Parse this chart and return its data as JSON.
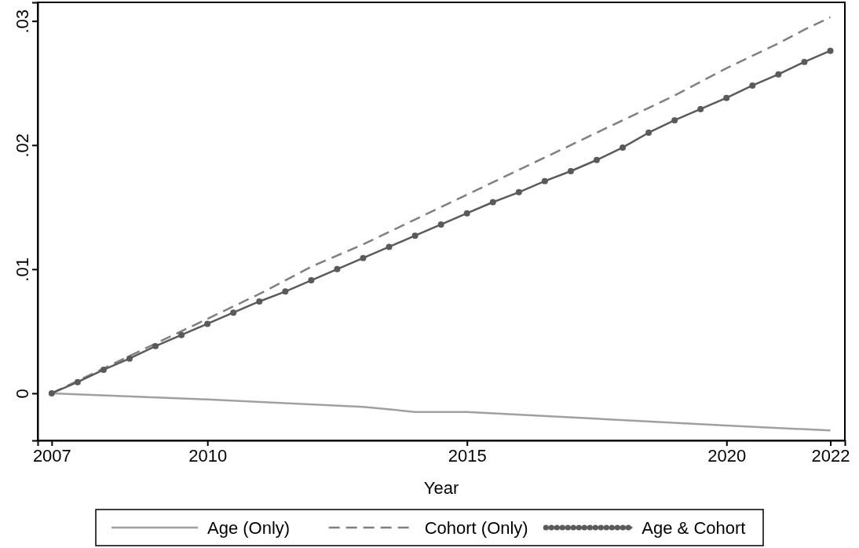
{
  "chart_data": {
    "type": "line",
    "xlabel": "Year",
    "xlim": [
      2006.73,
      2022.28
    ],
    "xticks": [
      2007,
      2010,
      2015,
      2020,
      2022
    ],
    "ylim": [
      -0.0038,
      0.0315
    ],
    "yticks": [
      {
        "value": 0,
        "label": "0"
      },
      {
        "value": 0.01,
        "label": ".01"
      },
      {
        "value": 0.02,
        "label": ".02"
      },
      {
        "value": 0.03,
        "label": ".03"
      }
    ],
    "grid": false,
    "legend": "bottom",
    "series": [
      {
        "name": "Age (Only)",
        "color": "#a0a0a0",
        "line_style": "solid",
        "marker": "none",
        "x": [
          2007,
          2010,
          2013,
          2014,
          2015,
          2020,
          2022
        ],
        "values": [
          0,
          -0.0005,
          -0.0011,
          -0.0015,
          -0.0015,
          -0.0026,
          -0.003
        ]
      },
      {
        "name": "Cohort (Only)",
        "color": "#808080",
        "line_style": "dashed",
        "marker": "none",
        "x": [
          2007,
          2008,
          2009,
          2010,
          2011,
          2012,
          2013,
          2014,
          2015,
          2016,
          2017,
          2018,
          2019,
          2020,
          2021,
          2021.55,
          2022
        ],
        "values": [
          0,
          0.002,
          0.004,
          0.006,
          0.008,
          0.0102,
          0.012,
          0.014,
          0.016,
          0.018,
          0.02,
          0.022,
          0.024,
          0.0262,
          0.0282,
          0.0294,
          0.0303
        ]
      },
      {
        "name": "Age & Cohort",
        "color": "#5a5a5a",
        "line_style": "solid",
        "marker": "circle",
        "x": [
          2007,
          2007.5,
          2008,
          2008.5,
          2009,
          2009.5,
          2010,
          2010.5,
          2011,
          2011.5,
          2012,
          2012.5,
          2013,
          2013.5,
          2014,
          2014.5,
          2015,
          2015.5,
          2016,
          2016.5,
          2017,
          2017.5,
          2018,
          2018.5,
          2019,
          2019.5,
          2020,
          2020.5,
          2021,
          2021.5,
          2022
        ],
        "values": [
          0,
          0.0009,
          0.0019,
          0.0028,
          0.0038,
          0.0047,
          0.0056,
          0.0065,
          0.0074,
          0.0082,
          0.0091,
          0.01,
          0.0109,
          0.0118,
          0.0127,
          0.0136,
          0.0145,
          0.0154,
          0.0162,
          0.0171,
          0.0179,
          0.0188,
          0.0198,
          0.021,
          0.022,
          0.0229,
          0.0238,
          0.0248,
          0.0257,
          0.0267,
          0.0276
        ]
      }
    ]
  }
}
